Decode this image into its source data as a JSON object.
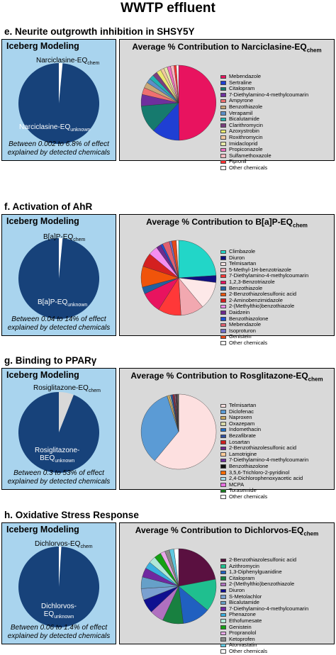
{
  "title": "WWTP effluent",
  "colors": {
    "panel_blue": "#a9d4ee",
    "iceberg_dark": "#17427a",
    "panel_grey": "#d9d9d9"
  },
  "sections": [
    {
      "id": "e",
      "title": "e. Neurite outgrowth inhibition in SHSY5Y",
      "iceberg_heading": "Iceberg Modeling",
      "chem_label": "Narciclasine-EQ",
      "chem_sub": "chem",
      "unknown_label": "Narciclasine-EQ",
      "unknown_sub": "unknown",
      "caption_line1": "Between 0.002 to 6.8% of effect",
      "caption_line2": "explained by detected chemicals",
      "avg_heading": "Average % Contribution to Narciclasine-EQ",
      "avg_sub": "chem"
    },
    {
      "id": "f",
      "title": "f. Activation of AhR",
      "iceberg_heading": "Iceberg Modeling",
      "chem_label": "B[a]P-EQ",
      "chem_sub": "chem",
      "unknown_label": "B[a]P-EQ",
      "unknown_sub": "unknown",
      "caption_line1": "Between 0.04 to 14% of effect",
      "caption_line2": "explained by detected chemicals",
      "avg_heading": "Average % Contribution to B[a]P-EQ",
      "avg_sub": "chem"
    },
    {
      "id": "g",
      "title": "g. Binding to PPARγ",
      "iceberg_heading": "Iceberg Modeling",
      "chem_label": "Rosiglitazone-EQ",
      "chem_sub": "chem",
      "unknown_label": "Rosiglitazone-",
      "unknown_label2": "BEQ",
      "unknown_sub": "unknown",
      "caption_line1": "Between 0.3 to 53% of effect",
      "caption_line2": "explained by detected chemicals",
      "avg_heading": "Average % Contribution to Rosglitazone-EQ",
      "avg_sub": "chem"
    },
    {
      "id": "h",
      "title": "h. Oxidative Stress Response",
      "iceberg_heading": "Iceberg Modeling",
      "chem_label": "Dichlorvos-EQ",
      "chem_sub": "chem",
      "unknown_label": "Dichlorvos-",
      "unknown_label2": "EQ",
      "unknown_sub": "unknown",
      "caption_line1": "Between 0.06 to 1.4% of effect",
      "caption_line2": "explained by detected chemicals",
      "avg_heading": "Average % Contribution to Dichlorvos-EQ",
      "avg_sub": "chem"
    }
  ],
  "chart_data": [
    {
      "type": "pie",
      "title": "Iceberg Modeling",
      "labels": [
        "Narciclasine-EQchem",
        "Narciclasine-EQunknown"
      ],
      "values": [
        1.5,
        98.5
      ],
      "colors": [
        "#ffffff",
        "#17427a"
      ]
    },
    {
      "type": "pie",
      "title": "Average % Contribution to Narciclasine-EQchem",
      "labels": [
        "Mebendazole",
        "Sertraline",
        "Citalopram",
        "7-Diethylamino-4-methylcoumarin",
        "Ampyrone",
        "Benzothiazole",
        "Verapamil",
        "Bicalutamide",
        "Clarithromycin",
        "Azoxystrobin",
        "Roxithromycin",
        "Imidacloprid",
        "Propiconazole",
        "Sulfamethoxazole",
        "Fipronil",
        "Other chemicals"
      ],
      "values": [
        50,
        12,
        12,
        5,
        3,
        2.5,
        2,
        2,
        2,
        2,
        1.5,
        1.5,
        1.5,
        1.5,
        1,
        1
      ],
      "colors": [
        "#e8135f",
        "#1f3fd3",
        "#167a6e",
        "#6f2f9e",
        "#f07070",
        "#c8a878",
        "#5b8fc8",
        "#20b3b0",
        "#7a3f7f",
        "#eaea70",
        "#f0c8a0",
        "#e5e8a8",
        "#f06ec0",
        "#f8b8c0",
        "#ff3030",
        "#ffffff"
      ]
    },
    {
      "type": "pie",
      "title": "Iceberg Modeling",
      "labels": [
        "B[a]P-EQchem",
        "B[a]P-EQunknown"
      ],
      "values": [
        1.5,
        98.5
      ],
      "colors": [
        "#ffffff",
        "#17427a"
      ]
    },
    {
      "type": "pie",
      "title": "Average % Contribution to B[a]P-EQchem",
      "labels": [
        "Climbazole",
        "Diuron",
        "Telmisartan",
        "5-Methyl-1H-benzotriazole",
        "7-Diethylamino-4-methylcoumarin",
        "1,2,3-Benzotriazole",
        "Benzothiazole",
        "2-Benzothiazolesulfonic acid",
        "2-Aminobenzimidazole",
        "2-(Methylthio)benzothiazole",
        "Daidzein",
        "Benzothiazolone",
        "Mebendazole",
        "Isoproturon",
        "Genistein",
        "Other chemicals"
      ],
      "values": [
        24,
        3,
        12,
        10,
        10,
        9,
        3,
        9,
        6,
        4,
        2,
        1,
        3,
        1,
        2,
        1
      ],
      "colors": [
        "#22d6c8",
        "#101080",
        "#fde8e8",
        "#f2a8b0",
        "#ff3838",
        "#e8135f",
        "#2060a0",
        "#f0540a",
        "#d42020",
        "#f48ef0",
        "#6e2a8e",
        "#1e50d0",
        "#e06070",
        "#7070c8",
        "#e64a1a",
        "#ffffff"
      ]
    },
    {
      "type": "pie",
      "title": "Iceberg Modeling",
      "labels": [
        "Rosiglitazone-EQchem",
        "Rosiglitazone-BEQunknown"
      ],
      "values": [
        6,
        94
      ],
      "colors": [
        "#d8d8d8",
        "#17427a"
      ]
    },
    {
      "type": "pie",
      "title": "Average % Contribution to Rosglitazone-EQchem",
      "labels": [
        "Telmisartan",
        "Diclofenac",
        "Naproxen",
        "Oxazepam",
        "Indomethacin",
        "Bezafibrate",
        "Losartan",
        "2-Benzothiazolesulfonic acid",
        "Lamotrigine",
        "7-Diethylamino-4-methylcoumarin",
        "Benzothiazolone",
        "3,5,6-Trichloro-2-pyridinol",
        "2,4-Dichlorophenoxyacetic acid",
        "MCPA",
        "Torasemide",
        "Other chemicals"
      ],
      "values": [
        61,
        34,
        1,
        0.5,
        0.5,
        0.5,
        0.5,
        0.3,
        0.3,
        0.3,
        0.2,
        0.2,
        0.2,
        0.2,
        0.2,
        0.1
      ],
      "colors": [
        "#fde0e0",
        "#5b9bd5",
        "#c8a860",
        "#d8d8a8",
        "#2070c8",
        "#2f4fa0",
        "#d02020",
        "#6e2a8e",
        "#ffcc99",
        "#7030a0",
        "#101010",
        "#ff6a00",
        "#a8e0f0",
        "#e96fe0",
        "#1a7a20",
        "#ffffff"
      ]
    },
    {
      "type": "pie",
      "title": "Iceberg Modeling",
      "labels": [
        "Dichlorvos-EQchem",
        "Dichlorvos-EQunknown"
      ],
      "values": [
        1,
        99
      ],
      "colors": [
        "#ffffff",
        "#17427a"
      ]
    },
    {
      "type": "pie",
      "title": "Average % Contribution to Dichlorvos-EQchem",
      "labels": [
        "2-Benzothiazolesulfonic acid",
        "Azithromycin",
        "1,3-Diphenylguanidine",
        "Citalopram",
        "2-(Methylthio)benzothiazole",
        "Diuron",
        "S-Metolachlor",
        "Bicalutamide",
        "7-Diethylamino-4-methylcoumarin",
        "Phenazone",
        "Ethofumesate",
        "Genistein",
        "Propranolol",
        "Ketoprofen",
        "Atorvastatin",
        "Other chemicals"
      ],
      "values": [
        22,
        14,
        12,
        9,
        6,
        6,
        5,
        5,
        4,
        3,
        3,
        3,
        2,
        2,
        2,
        2
      ],
      "colors": [
        "#5a1040",
        "#1fbf8f",
        "#2060c0",
        "#188040",
        "#b070c0",
        "#101090",
        "#7aa0d0",
        "#66a0c8",
        "#7028a0",
        "#3ab0e0",
        "#b0e8d8",
        "#14a014",
        "#e8a8e8",
        "#8a8a8a",
        "#60c8e0",
        "#ffffff"
      ]
    }
  ]
}
